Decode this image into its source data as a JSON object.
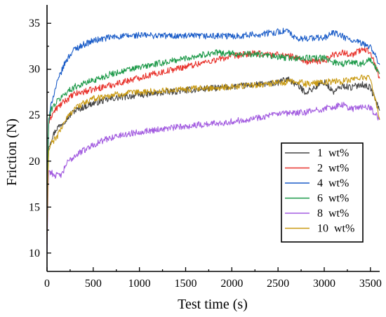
{
  "chart_data": {
    "type": "line",
    "title": "",
    "xlabel": "Test time (s)",
    "ylabel": "Friction (N)",
    "xlim": [
      0,
      3600
    ],
    "ylim": [
      8,
      37
    ],
    "xticks": [
      0,
      500,
      1000,
      1500,
      2000,
      2500,
      3000,
      3500
    ],
    "yticks": [
      10,
      15,
      20,
      25,
      30,
      35
    ],
    "grid": false,
    "legend_position": "lower-right",
    "series": [
      {
        "name": "1  wt%",
        "color": "#444444",
        "x": [
          0,
          15,
          50,
          100,
          200,
          300,
          500,
          700,
          1000,
          1500,
          2000,
          2500,
          2600,
          2700,
          2800,
          2900,
          3000,
          3100,
          3200,
          3300,
          3400,
          3500,
          3600
        ],
        "y": [
          11,
          21.5,
          22.5,
          23.5,
          24.5,
          25.5,
          26.3,
          26.8,
          27.2,
          27.7,
          28.1,
          28.5,
          29,
          28.3,
          27.5,
          28,
          28.6,
          27.5,
          28.2,
          28,
          28.4,
          28,
          25.5
        ]
      },
      {
        "name": "2  wt%",
        "color": "#e8322b",
        "x": [
          0,
          15,
          50,
          100,
          200,
          300,
          500,
          700,
          1000,
          1500,
          2000,
          2200,
          2500,
          2700,
          2800,
          3000,
          3100,
          3200,
          3300,
          3400,
          3500,
          3600
        ],
        "y": [
          12,
          24,
          25,
          25.7,
          26.6,
          27.3,
          27.8,
          28.3,
          29.1,
          30.3,
          31.4,
          31.7,
          31.6,
          31.3,
          30.8,
          30.9,
          31.6,
          31.8,
          31.6,
          32.1,
          32,
          29
        ]
      },
      {
        "name": "4  wt%",
        "color": "#1a5cc8",
        "x": [
          0,
          15,
          50,
          100,
          150,
          200,
          250,
          300,
          400,
          500,
          700,
          1000,
          1500,
          2000,
          2300,
          2600,
          2700,
          2800,
          3000,
          3100,
          3300,
          3400,
          3500,
          3600
        ],
        "y": [
          13,
          24,
          26.5,
          28.2,
          29.6,
          30.8,
          31.6,
          32.2,
          32.7,
          33.1,
          33.5,
          33.7,
          33.6,
          33.6,
          33.8,
          34.2,
          33.2,
          33.4,
          33.4,
          34,
          33.1,
          32.8,
          32.5,
          30.5
        ]
      },
      {
        "name": "6  wt%",
        "color": "#1e9a4a",
        "x": [
          0,
          15,
          50,
          100,
          200,
          300,
          500,
          700,
          1000,
          1500,
          1800,
          2000,
          2300,
          2500,
          2700,
          3000,
          3100,
          3200,
          3300,
          3400,
          3500,
          3600
        ],
        "y": [
          12,
          24.5,
          25.7,
          26.4,
          27.4,
          28.1,
          28.8,
          29.5,
          30.2,
          31.2,
          31.8,
          31.7,
          31.6,
          31.3,
          31.2,
          31.2,
          30.8,
          30.6,
          30.8,
          30.6,
          31,
          29.5
        ]
      },
      {
        "name": "8  wt%",
        "color": "#a35de0",
        "x": [
          0,
          15,
          40,
          80,
          120,
          170,
          200,
          300,
          500,
          700,
          1000,
          1500,
          2000,
          2500,
          2800,
          3000,
          3200,
          3300,
          3400,
          3500,
          3600
        ],
        "y": [
          10,
          19,
          18.8,
          18.5,
          18.4,
          18.6,
          19.6,
          20.6,
          21.8,
          22.6,
          23.2,
          23.8,
          24.3,
          25.1,
          25.3,
          25.7,
          26.1,
          25.7,
          25.9,
          25.8,
          24.5
        ]
      },
      {
        "name": "10  wt%",
        "color": "#c99a12",
        "x": [
          0,
          15,
          50,
          100,
          150,
          200,
          300,
          500,
          700,
          1000,
          1500,
          2000,
          2500,
          2700,
          2800,
          3000,
          3200,
          3300,
          3400,
          3500,
          3600
        ],
        "y": [
          11,
          21,
          22,
          22.5,
          23.5,
          24.5,
          25.8,
          26.8,
          27.2,
          27.5,
          27.8,
          28.1,
          28.5,
          28.7,
          28.4,
          28.6,
          28.7,
          28.9,
          29.1,
          29,
          24.5
        ]
      }
    ]
  }
}
